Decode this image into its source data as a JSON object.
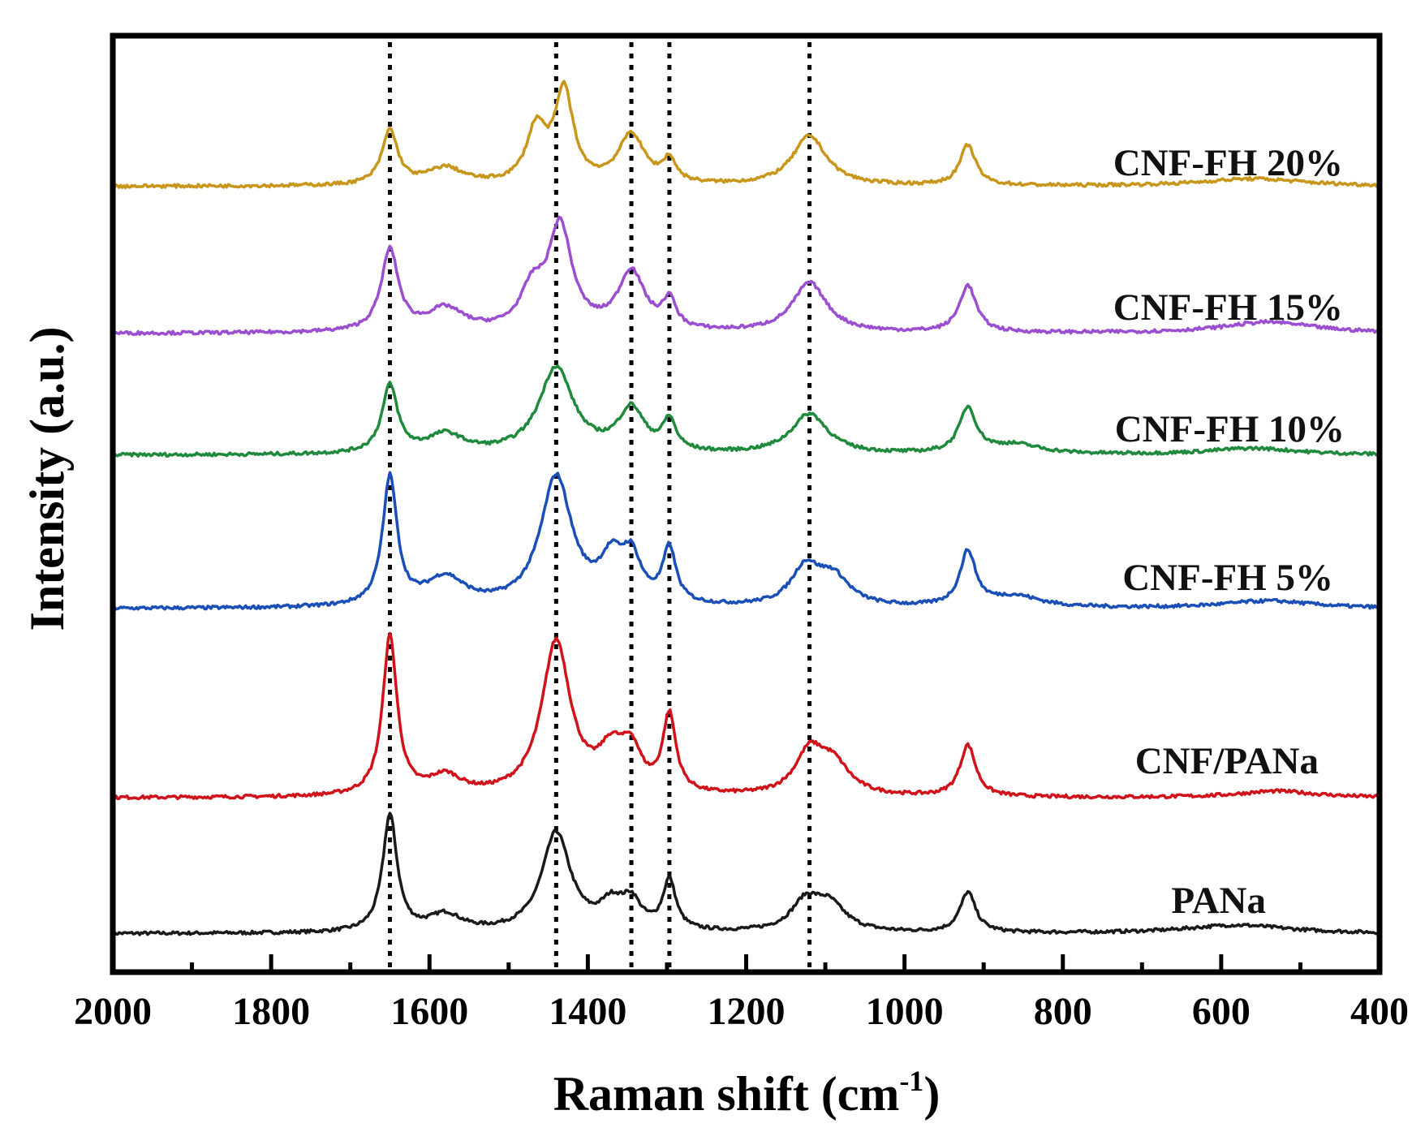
{
  "chart_data": {
    "type": "line",
    "title": "",
    "xlabel": "Raman shift (cm",
    "xlabel_sup": "-1",
    "xlabel_close": ")",
    "ylabel": "Intensity (a.u.)",
    "xlim": [
      2000,
      400
    ],
    "ylim": [
      0,
      100
    ],
    "x_reversed": true,
    "xticks": [
      "2000",
      "1800",
      "1600",
      "1400",
      "1200",
      "1000",
      "800",
      "600",
      "400"
    ],
    "yticks_shown": false,
    "grid": false,
    "legend": "inline labels at right of each trace",
    "reference_lines_x": [
      1650,
      1440,
      1345,
      1297,
      1120
    ],
    "series": [
      {
        "name": "PANa",
        "color": "#1a1a1a",
        "offset": 4.1,
        "peaks": [
          {
            "x": 1650,
            "height": 12.5,
            "width": 11
          },
          {
            "x": 1580,
            "height": 1.8,
            "width": 25
          },
          {
            "x": 1440,
            "height": 10.6,
            "width": 22
          },
          {
            "x": 1370,
            "height": 2.6,
            "width": 18
          },
          {
            "x": 1345,
            "height": 2.8,
            "width": 15
          },
          {
            "x": 1297,
            "height": 5.3,
            "width": 10
          },
          {
            "x": 1125,
            "height": 3.0,
            "width": 22
          },
          {
            "x": 1095,
            "height": 2.8,
            "width": 25
          },
          {
            "x": 920,
            "height": 4.3,
            "width": 12
          },
          {
            "x": 580,
            "height": 0.9,
            "width": 80
          }
        ]
      },
      {
        "name": "CNF/PANa",
        "color": "#d0121b",
        "offset": 18.6,
        "peaks": [
          {
            "x": 1650,
            "height": 17.0,
            "width": 11
          },
          {
            "x": 1580,
            "height": 2.0,
            "width": 25
          },
          {
            "x": 1440,
            "height": 16.4,
            "width": 22
          },
          {
            "x": 1370,
            "height": 4.2,
            "width": 20
          },
          {
            "x": 1345,
            "height": 4.0,
            "width": 15
          },
          {
            "x": 1297,
            "height": 8.2,
            "width": 10
          },
          {
            "x": 1120,
            "height": 4.4,
            "width": 22
          },
          {
            "x": 1090,
            "height": 3.2,
            "width": 25
          },
          {
            "x": 920,
            "height": 5.5,
            "width": 12
          },
          {
            "x": 530,
            "height": 0.7,
            "width": 60
          }
        ]
      },
      {
        "name": "CNF-FH 5%",
        "color": "#1b4fb8",
        "offset": 38.8,
        "peaks": [
          {
            "x": 1650,
            "height": 13.7,
            "width": 11
          },
          {
            "x": 1580,
            "height": 3.0,
            "width": 30
          },
          {
            "x": 1440,
            "height": 13.8,
            "width": 24
          },
          {
            "x": 1370,
            "height": 4.3,
            "width": 18
          },
          {
            "x": 1345,
            "height": 4.5,
            "width": 15
          },
          {
            "x": 1297,
            "height": 5.8,
            "width": 10
          },
          {
            "x": 1125,
            "height": 4.0,
            "width": 22
          },
          {
            "x": 1090,
            "height": 3.0,
            "width": 25
          },
          {
            "x": 920,
            "height": 5.8,
            "width": 12
          },
          {
            "x": 860,
            "height": 1.2,
            "width": 40
          },
          {
            "x": 540,
            "height": 0.8,
            "width": 70
          }
        ]
      },
      {
        "name": "CNF-FH 10%",
        "color": "#1f8a3c",
        "offset": 55.2,
        "peaks": [
          {
            "x": 1650,
            "height": 7.2,
            "width": 12
          },
          {
            "x": 1580,
            "height": 2.0,
            "width": 28
          },
          {
            "x": 1440,
            "height": 9.2,
            "width": 26
          },
          {
            "x": 1345,
            "height": 4.6,
            "width": 20
          },
          {
            "x": 1297,
            "height": 3.2,
            "width": 10
          },
          {
            "x": 1120,
            "height": 4.3,
            "width": 28
          },
          {
            "x": 920,
            "height": 4.8,
            "width": 13
          },
          {
            "x": 860,
            "height": 1.0,
            "width": 40
          },
          {
            "x": 560,
            "height": 0.7,
            "width": 70
          }
        ]
      },
      {
        "name": "CNF-FH 15%",
        "color": "#9b4fd0",
        "offset": 68.2,
        "peaks": [
          {
            "x": 1650,
            "height": 8.7,
            "width": 13
          },
          {
            "x": 1580,
            "height": 2.4,
            "width": 28
          },
          {
            "x": 1470,
            "height": 4.0,
            "width": 18
          },
          {
            "x": 1435,
            "height": 11.0,
            "width": 18
          },
          {
            "x": 1345,
            "height": 6.3,
            "width": 20
          },
          {
            "x": 1297,
            "height": 3.0,
            "width": 10
          },
          {
            "x": 1120,
            "height": 5.3,
            "width": 26
          },
          {
            "x": 920,
            "height": 5.0,
            "width": 13
          },
          {
            "x": 540,
            "height": 1.2,
            "width": 70
          }
        ]
      },
      {
        "name": "CNF-FH 20%",
        "color": "#c8961a",
        "offset": 83.9,
        "peaks": [
          {
            "x": 1650,
            "height": 5.8,
            "width": 12
          },
          {
            "x": 1580,
            "height": 1.8,
            "width": 28
          },
          {
            "x": 1465,
            "height": 5.8,
            "width": 15
          },
          {
            "x": 1430,
            "height": 9.8,
            "width": 14
          },
          {
            "x": 1345,
            "height": 5.3,
            "width": 20
          },
          {
            "x": 1297,
            "height": 2.4,
            "width": 10
          },
          {
            "x": 1120,
            "height": 5.3,
            "width": 26
          },
          {
            "x": 920,
            "height": 4.3,
            "width": 12
          },
          {
            "x": 560,
            "height": 0.8,
            "width": 80
          }
        ]
      }
    ]
  }
}
